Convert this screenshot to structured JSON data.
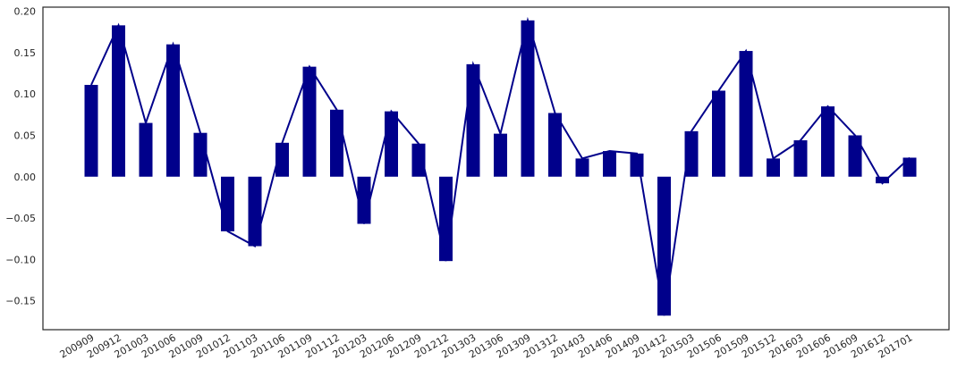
{
  "chart_data": {
    "type": "bar",
    "title": "",
    "xlabel": "",
    "ylabel": "",
    "categories": [
      "200909",
      "200912",
      "201003",
      "201006",
      "201009",
      "201012",
      "201103",
      "201106",
      "201109",
      "201112",
      "201203",
      "201206",
      "201209",
      "201212",
      "201303",
      "201306",
      "201309",
      "201312",
      "201403",
      "201406",
      "201409",
      "201412",
      "201503",
      "201506",
      "201509",
      "201512",
      "201603",
      "201606",
      "201609",
      "201612",
      "201701"
    ],
    "values": [
      0.111,
      0.183,
      0.065,
      0.16,
      0.053,
      -0.066,
      -0.084,
      0.041,
      0.133,
      0.081,
      -0.057,
      0.079,
      0.04,
      -0.102,
      0.136,
      0.052,
      0.189,
      0.077,
      0.022,
      0.031,
      0.028,
      -0.168,
      0.055,
      0.104,
      0.152,
      0.022,
      0.044,
      0.085,
      0.05,
      -0.008,
      0.023
    ],
    "line_overlay": true,
    "ylim": [
      -0.185,
      0.205
    ],
    "yticks": [
      -0.15,
      -0.1,
      -0.05,
      0.0,
      0.05,
      0.1,
      0.15,
      0.2
    ],
    "ytick_labels": [
      "−0.15",
      "−0.10",
      "−0.05",
      "0.00",
      "0.05",
      "0.10",
      "0.15",
      "0.20"
    ],
    "colors": {
      "bar": "#00008b",
      "line": "#00008b",
      "frame": "#262626"
    },
    "grid": false,
    "legend": false
  }
}
